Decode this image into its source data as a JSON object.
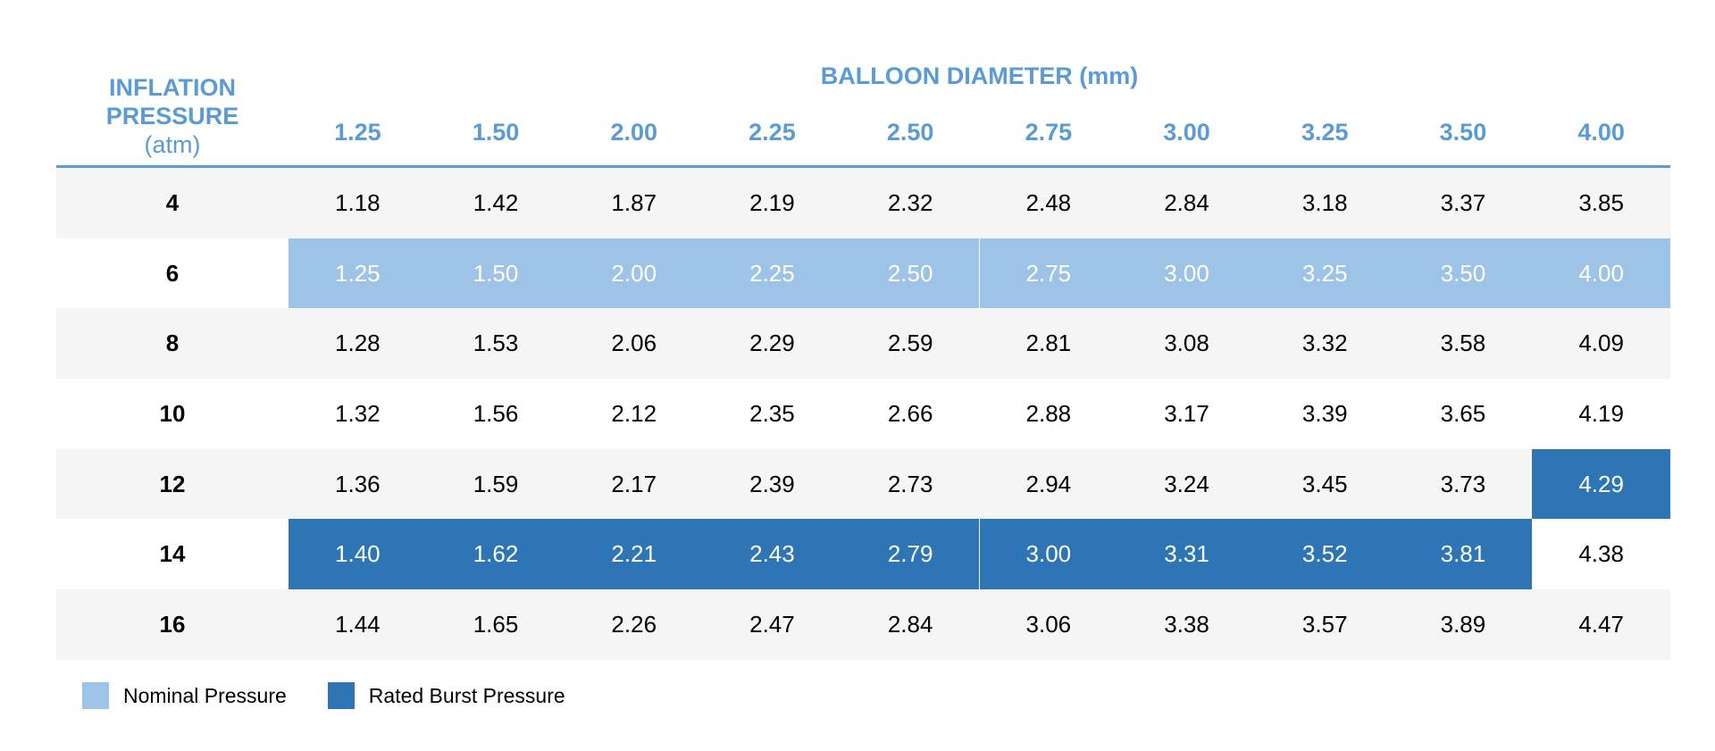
{
  "header": {
    "inflation_line1": "INFLATION",
    "inflation_line2": "PRESSURE",
    "inflation_unit": "(atm)",
    "diameter_title": "BALLOON DIAMETER (mm)"
  },
  "columns": [
    "1.25",
    "1.50",
    "2.00",
    "2.25",
    "2.50",
    "2.75",
    "3.00",
    "3.25",
    "3.50",
    "4.00"
  ],
  "rows": [
    {
      "pressure": "4",
      "values": [
        "1.18",
        "1.42",
        "1.87",
        "2.19",
        "2.32",
        "2.48",
        "2.84",
        "3.18",
        "3.37",
        "3.85"
      ],
      "marks": [
        "",
        "",
        "",
        "",
        "",
        "",
        "",
        "",
        "",
        ""
      ]
    },
    {
      "pressure": "6",
      "values": [
        "1.25",
        "1.50",
        "2.00",
        "2.25",
        "2.50",
        "2.75",
        "3.00",
        "3.25",
        "3.50",
        "4.00"
      ],
      "marks": [
        "nominal",
        "nominal",
        "nominal",
        "nominal",
        "nominal",
        "nominal",
        "nominal",
        "nominal",
        "nominal",
        "nominal"
      ]
    },
    {
      "pressure": "8",
      "values": [
        "1.28",
        "1.53",
        "2.06",
        "2.29",
        "2.59",
        "2.81",
        "3.08",
        "3.32",
        "3.58",
        "4.09"
      ],
      "marks": [
        "",
        "",
        "",
        "",
        "",
        "",
        "",
        "",
        "",
        ""
      ]
    },
    {
      "pressure": "10",
      "values": [
        "1.32",
        "1.56",
        "2.12",
        "2.35",
        "2.66",
        "2.88",
        "3.17",
        "3.39",
        "3.65",
        "4.19"
      ],
      "marks": [
        "",
        "",
        "",
        "",
        "",
        "",
        "",
        "",
        "",
        ""
      ]
    },
    {
      "pressure": "12",
      "values": [
        "1.36",
        "1.59",
        "2.17",
        "2.39",
        "2.73",
        "2.94",
        "3.24",
        "3.45",
        "3.73",
        "4.29"
      ],
      "marks": [
        "",
        "",
        "",
        "",
        "",
        "",
        "",
        "",
        "",
        "rated"
      ]
    },
    {
      "pressure": "14",
      "values": [
        "1.40",
        "1.62",
        "2.21",
        "2.43",
        "2.79",
        "3.00",
        "3.31",
        "3.52",
        "3.81",
        "4.38"
      ],
      "marks": [
        "rated",
        "rated",
        "rated",
        "rated",
        "rated",
        "rated",
        "rated",
        "rated",
        "rated",
        ""
      ]
    },
    {
      "pressure": "16",
      "values": [
        "1.44",
        "1.65",
        "2.26",
        "2.47",
        "2.84",
        "3.06",
        "3.38",
        "3.57",
        "3.89",
        "4.47"
      ],
      "marks": [
        "",
        "",
        "",
        "",
        "",
        "",
        "",
        "",
        "",
        ""
      ]
    }
  ],
  "legend": {
    "nominal_label": "Nominal Pressure",
    "rated_label": "Rated Burst Pressure"
  },
  "colors": {
    "header_blue": "#5b9bd5",
    "nominal": "#9dc3e6",
    "rated_burst": "#2e75b6",
    "row_shade": "#f5f5f5"
  }
}
